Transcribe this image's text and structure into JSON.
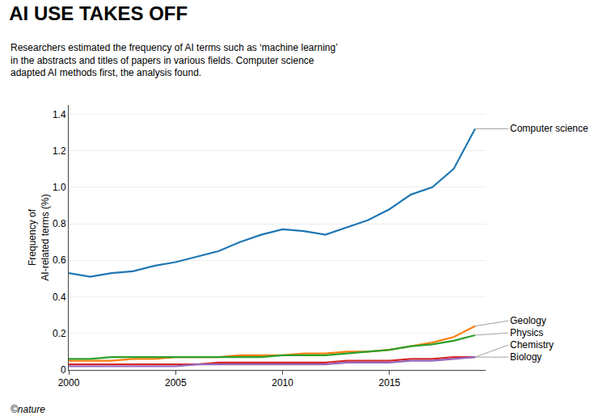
{
  "chart_data": {
    "type": "line",
    "title": "AI USE TAKES OFF",
    "subtitle": "Researchers estimated the frequency of AI terms such as ‘machine learning’\nin the abstracts and titles of papers in various fields. Computer science\nadapted AI methods first, the analysis found.",
    "ylabel": "Frequency of\nAI-related terms (%)",
    "footer": "©nature",
    "x": [
      2000,
      2001,
      2002,
      2003,
      2004,
      2005,
      2006,
      2007,
      2008,
      2009,
      2010,
      2011,
      2012,
      2013,
      2014,
      2015,
      2016,
      2017,
      2018,
      2019
    ],
    "series": [
      {
        "name": "Computer science",
        "values": [
          0.53,
          0.51,
          0.53,
          0.54,
          0.57,
          0.59,
          0.62,
          0.65,
          0.7,
          0.74,
          0.77,
          0.76,
          0.74,
          0.78,
          0.82,
          0.88,
          0.96,
          1.0,
          1.1,
          1.32
        ]
      },
      {
        "name": "Geology",
        "values": [
          0.05,
          0.05,
          0.05,
          0.06,
          0.06,
          0.07,
          0.07,
          0.07,
          0.08,
          0.08,
          0.08,
          0.09,
          0.09,
          0.1,
          0.1,
          0.11,
          0.13,
          0.15,
          0.18,
          0.24
        ]
      },
      {
        "name": "Physics",
        "values": [
          0.06,
          0.06,
          0.07,
          0.07,
          0.07,
          0.07,
          0.07,
          0.07,
          0.07,
          0.07,
          0.08,
          0.08,
          0.08,
          0.09,
          0.1,
          0.11,
          0.13,
          0.14,
          0.16,
          0.19
        ]
      },
      {
        "name": "Chemistry",
        "values": [
          0.03,
          0.03,
          0.03,
          0.03,
          0.03,
          0.03,
          0.03,
          0.04,
          0.04,
          0.04,
          0.04,
          0.04,
          0.04,
          0.05,
          0.05,
          0.05,
          0.06,
          0.06,
          0.07,
          0.07
        ]
      },
      {
        "name": "Biology",
        "values": [
          0.02,
          0.02,
          0.02,
          0.02,
          0.02,
          0.02,
          0.03,
          0.03,
          0.03,
          0.03,
          0.03,
          0.03,
          0.03,
          0.04,
          0.04,
          0.04,
          0.05,
          0.05,
          0.06,
          0.07
        ]
      }
    ],
    "xlim": [
      2000,
      2019.5
    ],
    "xticks": [
      2000,
      2005,
      2010,
      2015
    ],
    "ylim": [
      0,
      1.45
    ],
    "yticks": [
      0,
      0.2,
      0.4,
      0.6,
      0.8,
      {
        "value": 1.0,
        "label": "1.0"
      },
      1.2,
      1.4
    ],
    "grid": "y"
  }
}
